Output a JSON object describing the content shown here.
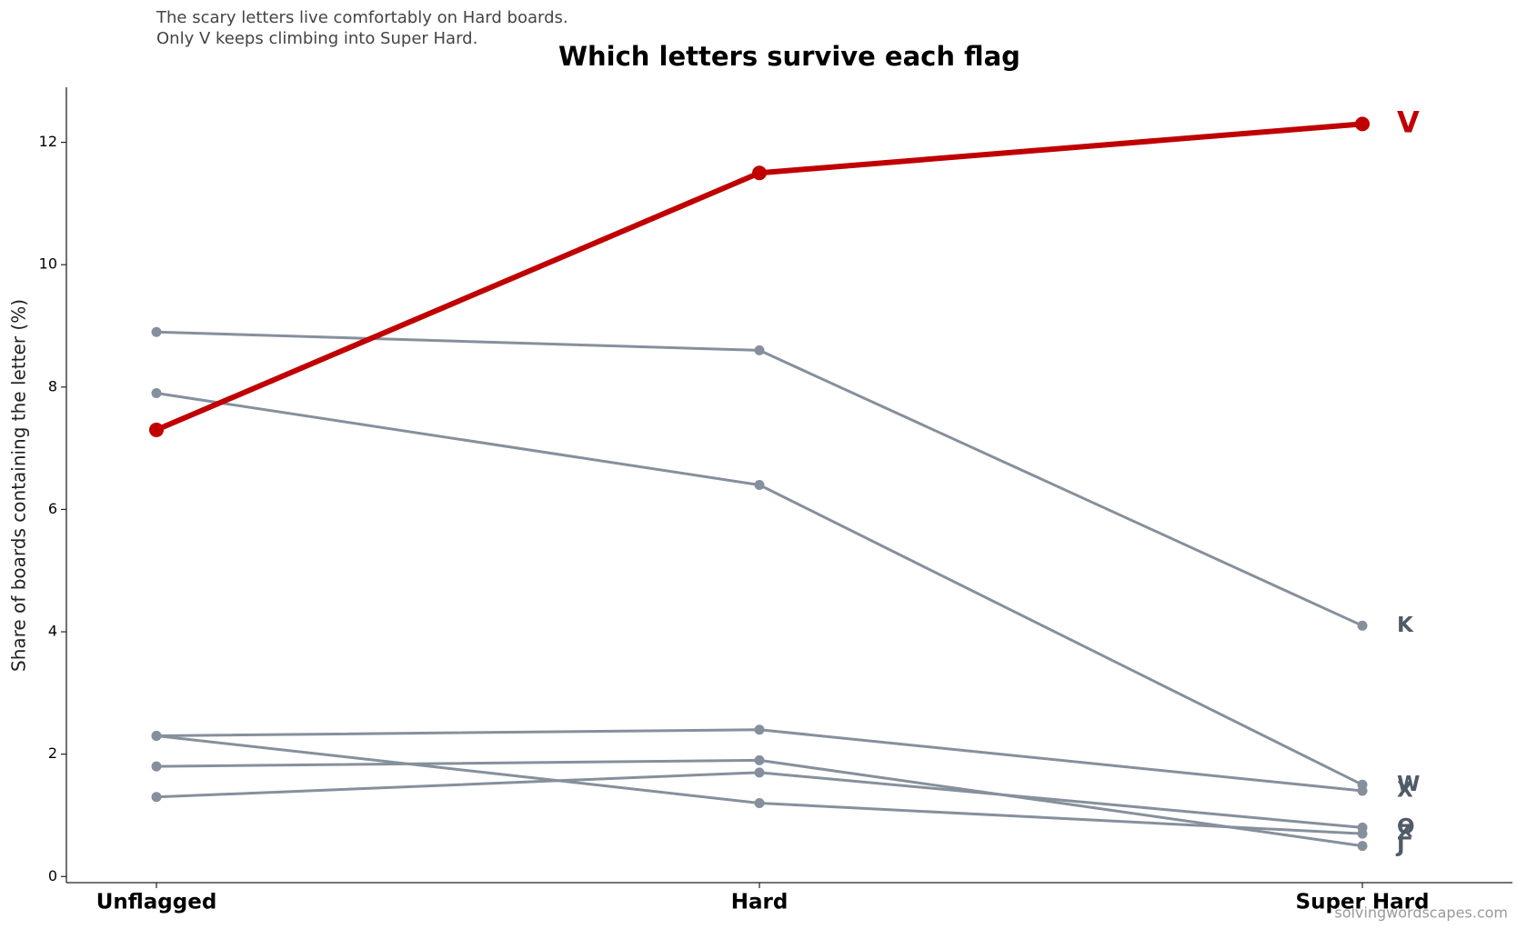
{
  "chart_data": {
    "type": "line",
    "title": "Which letters survive each flag",
    "subtitle": [
      "The scary letters live comfortably on Hard boards.",
      "Only V keeps climbing into Super Hard."
    ],
    "ylabel": "Share of boards containing the letter (%)",
    "source": "solvingwordscapes.com",
    "categories": [
      "Unflagged",
      "Hard",
      "Super Hard"
    ],
    "series": [
      {
        "name": "V",
        "color": "#c00000",
        "values": [
          7.3,
          11.5,
          12.3
        ]
      },
      {
        "name": "K",
        "color": "#86909c",
        "values": [
          8.9,
          8.6,
          4.1
        ]
      },
      {
        "name": "W",
        "color": "#86909c",
        "values": [
          7.9,
          6.4,
          1.5
        ]
      },
      {
        "name": "X",
        "color": "#86909c",
        "values": [
          2.3,
          2.4,
          1.4
        ]
      },
      {
        "name": "Q",
        "color": "#86909c",
        "values": [
          1.3,
          1.7,
          0.8
        ]
      },
      {
        "name": "Z",
        "color": "#86909c",
        "values": [
          2.3,
          1.2,
          0.7
        ]
      },
      {
        "name": "J",
        "color": "#86909c",
        "values": [
          1.8,
          1.9,
          0.5
        ]
      }
    ],
    "ylim": [
      -0.1,
      12.9
    ],
    "yticks": [
      0,
      2,
      4,
      6,
      8,
      10,
      12
    ],
    "grid": false
  }
}
